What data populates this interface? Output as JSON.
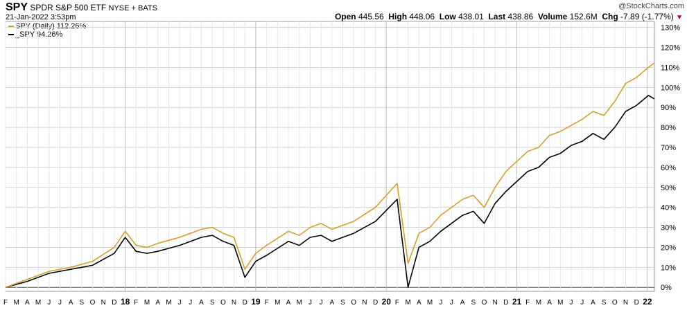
{
  "header": {
    "symbol": "SPY",
    "name": "SPDR S&P 500 ETF",
    "exchange": "NYSE + BATS",
    "datetime": "21-Jan-2022 3:53pm",
    "copyright": "@StockCharts.com",
    "open_label": "Open",
    "open": "445.56",
    "high_label": "High",
    "high": "448.06",
    "low_label": "Low",
    "low": "438.01",
    "last_label": "Last",
    "last": "438.86",
    "volume_label": "Volume",
    "volume": "152.6M",
    "chg_label": "Chg",
    "chg": "-7.89 (-1.77%)",
    "down_icon": "triangle-down-icon"
  },
  "colors": {
    "spy_daily": "#d4a02a",
    "spy": "#000000",
    "grid": "#d0d0d0",
    "zero": "#555555"
  },
  "chart_data": {
    "type": "line",
    "title": "",
    "y_unit": "%",
    "ylim": [
      -2,
      133
    ],
    "y_ticks": [
      "0%",
      "10%",
      "20%",
      "30%",
      "40%",
      "50%",
      "60%",
      "70%",
      "80%",
      "90%",
      "100%",
      "110%",
      "120%",
      "130%"
    ],
    "x_tick_labels": [
      "F",
      "M",
      "A",
      "M",
      "J",
      "J",
      "A",
      "S",
      "O",
      "N",
      "D",
      "18",
      "F",
      "M",
      "A",
      "M",
      "J",
      "J",
      "A",
      "S",
      "O",
      "N",
      "D",
      "19",
      "F",
      "M",
      "A",
      "M",
      "J",
      "J",
      "A",
      "S",
      "O",
      "N",
      "D",
      "20",
      "F",
      "M",
      "A",
      "M",
      "J",
      "J",
      "A",
      "S",
      "O",
      "N",
      "D",
      "21",
      "F",
      "M",
      "A",
      "M",
      "J",
      "J",
      "A",
      "S",
      "O",
      "N",
      "D",
      "22"
    ],
    "x_start": "2017-02",
    "x_end": "2022-01-21",
    "grid": true,
    "legend_position": "top-left",
    "series": [
      {
        "name": "SPY (Daily) 112.26%",
        "x": [
          "2017-02",
          "2017-04",
          "2017-06",
          "2017-08",
          "2017-10",
          "2017-12",
          "2018-01",
          "2018-02",
          "2018-03",
          "2018-04",
          "2018-06",
          "2018-08",
          "2018-09",
          "2018-10",
          "2018-11",
          "2018-12",
          "2019-01",
          "2019-02",
          "2019-04",
          "2019-05",
          "2019-06",
          "2019-07",
          "2019-08",
          "2019-10",
          "2019-12",
          "2020-02",
          "2020-03",
          "2020-04",
          "2020-05",
          "2020-06",
          "2020-08",
          "2020-09",
          "2020-10",
          "2020-11",
          "2020-12",
          "2021-01",
          "2021-02",
          "2021-03",
          "2021-04",
          "2021-05",
          "2021-06",
          "2021-07",
          "2021-08",
          "2021-09",
          "2021-10",
          "2021-11",
          "2021-12",
          "2022-01-04",
          "2022-01-21"
        ],
        "values": [
          0,
          4,
          8,
          10,
          13,
          20,
          28,
          21,
          20,
          22,
          25,
          29,
          30,
          27,
          25,
          9,
          17,
          21,
          28,
          26,
          30,
          32,
          29,
          33,
          40,
          52,
          12,
          27,
          30,
          36,
          44,
          46,
          40,
          50,
          58,
          63,
          68,
          70,
          76,
          78,
          81,
          84,
          88,
          86,
          93,
          102,
          105,
          110,
          112.26
        ]
      },
      {
        "name": "_SPY 94.26%",
        "x": [
          "2017-02",
          "2017-04",
          "2017-06",
          "2017-08",
          "2017-10",
          "2017-12",
          "2018-01",
          "2018-02",
          "2018-03",
          "2018-04",
          "2018-06",
          "2018-08",
          "2018-09",
          "2018-10",
          "2018-11",
          "2018-12",
          "2019-01",
          "2019-02",
          "2019-04",
          "2019-05",
          "2019-06",
          "2019-07",
          "2019-08",
          "2019-10",
          "2019-12",
          "2020-02",
          "2020-03",
          "2020-04",
          "2020-05",
          "2020-06",
          "2020-08",
          "2020-09",
          "2020-10",
          "2020-11",
          "2020-12",
          "2021-01",
          "2021-02",
          "2021-03",
          "2021-04",
          "2021-05",
          "2021-06",
          "2021-07",
          "2021-08",
          "2021-09",
          "2021-10",
          "2021-11",
          "2021-12",
          "2022-01-04",
          "2022-01-21"
        ],
        "values": [
          0,
          3,
          7,
          9,
          11,
          17,
          25,
          18,
          17,
          18,
          21,
          25,
          26,
          23,
          21,
          5,
          13,
          16,
          23,
          21,
          25,
          26,
          23,
          27,
          33,
          44,
          0,
          20,
          23,
          28,
          36,
          38,
          32,
          42,
          48,
          53,
          58,
          60,
          65,
          67,
          71,
          73,
          77,
          74,
          80,
          88,
          91,
          96,
          94.26
        ]
      }
    ]
  }
}
